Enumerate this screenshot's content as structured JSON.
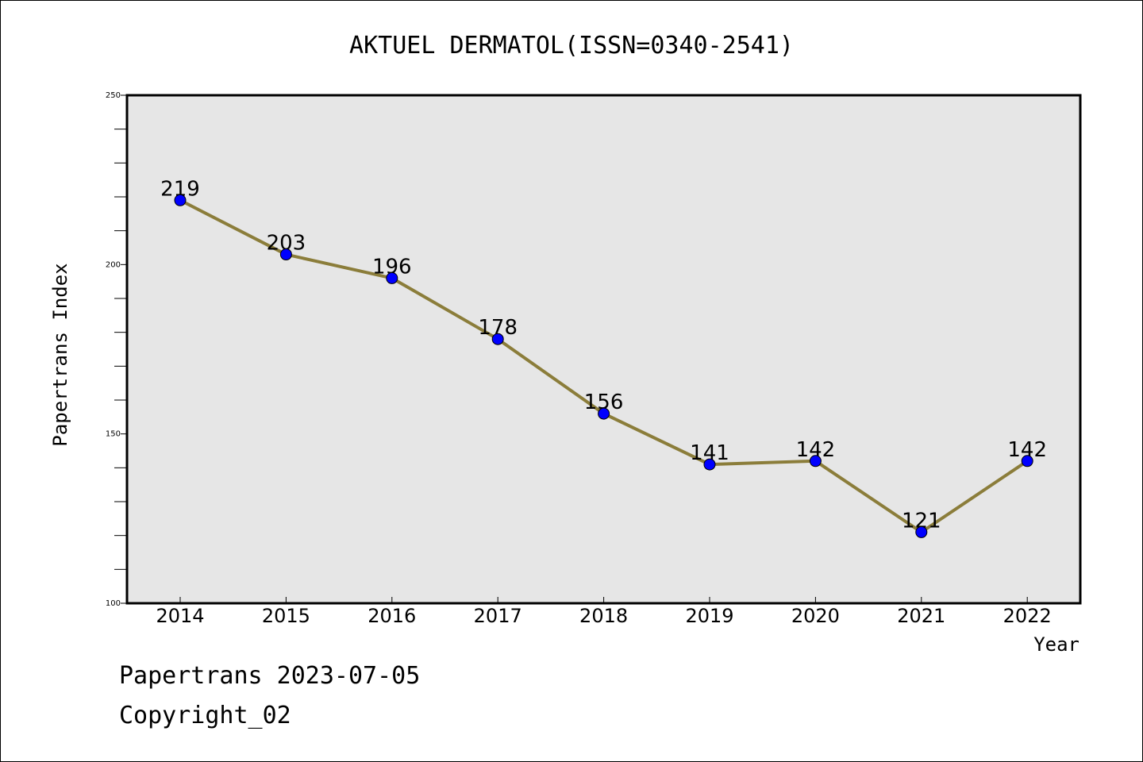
{
  "footer": {
    "line1": "Papertrans 2023-07-05",
    "line2": "Copyright_02"
  },
  "chart_data": {
    "type": "line",
    "title": "AKTUEL DERMATOL(ISSN=0340-2541)",
    "xlabel": "Year",
    "ylabel": "Papertrans Index",
    "categories": [
      "2014",
      "2015",
      "2016",
      "2017",
      "2018",
      "2019",
      "2020",
      "2021",
      "2022"
    ],
    "values": [
      219,
      203,
      196,
      178,
      156,
      141,
      142,
      121,
      142
    ],
    "ylim": [
      100,
      250
    ],
    "yticks": [
      100,
      150,
      200,
      250
    ],
    "grid": false,
    "legend": "none",
    "colors": {
      "line": "#8b7d3a",
      "marker": "#0000ff",
      "plot_background": "#e6e6e6"
    }
  }
}
